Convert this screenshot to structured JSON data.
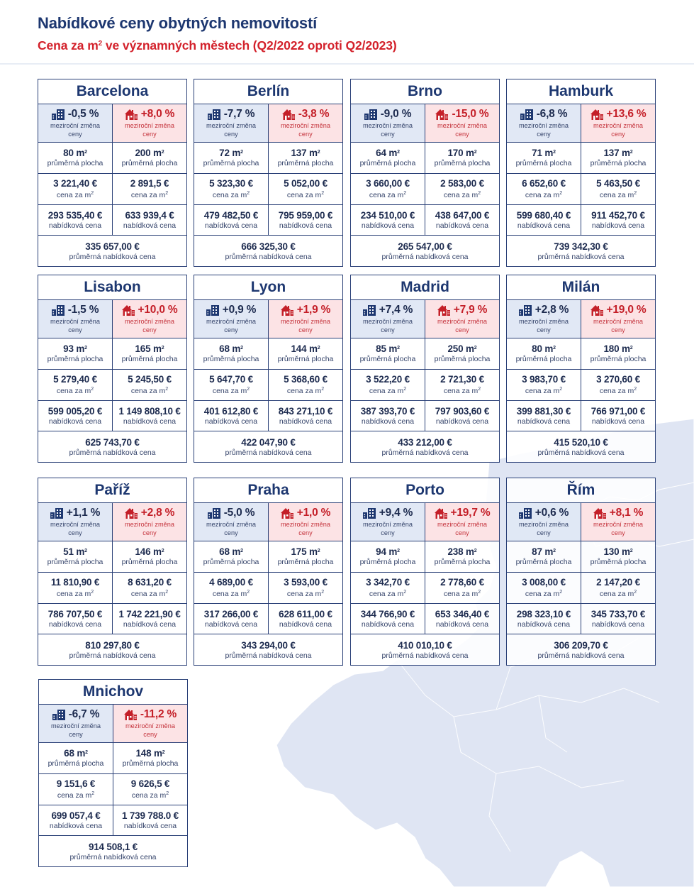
{
  "header": {
    "title": "Nabídkové ceny obytných nemovitostí",
    "subtitle_pre": "Cena za m",
    "subtitle_sup": "2",
    "subtitle_post": " ve významných městech (Q2/2022 oproti Q2/2023)"
  },
  "labels": {
    "change_line1": "meziroční změna",
    "change_line2": "ceny",
    "area": "průměrná plocha",
    "price_sqm": "cena za m",
    "sqm_sup": "2",
    "offer": "nabídková cena",
    "avg_offer": "průměrná nabídková cena"
  },
  "icons": {
    "flat": "apartment-building-icon",
    "house": "house-icon"
  },
  "colors": {
    "navy": "#1d3770",
    "red": "#d3212b",
    "flat_bg": "#dae2f2",
    "house_bg": "#fcdee0"
  },
  "cities": [
    {
      "name": "Barcelona",
      "flat_change": "-0,5 %",
      "house_change": "+8,0 %",
      "flat_area": "80 m",
      "house_area": "200 m",
      "flat_sqm": "3 221,40 €",
      "house_sqm": "2 891,5 €",
      "flat_offer": "293 535,40 €",
      "house_offer": "633 939,4 €",
      "avg_offer": "335 657,00 €"
    },
    {
      "name": "Berlín",
      "flat_change": "-7,7 %",
      "house_change": "-3,8 %",
      "flat_area": "72 m",
      "house_area": "137 m",
      "flat_sqm": "5 323,30 €",
      "house_sqm": "5 052,00 €",
      "flat_offer": "479 482,50 €",
      "house_offer": "795 959,00 €",
      "avg_offer": "666 325,30 €"
    },
    {
      "name": "Brno",
      "flat_change": "-9,0 %",
      "house_change": "-15,0 %",
      "flat_area": "64 m",
      "house_area": "170 m",
      "flat_sqm": "3 660,00 €",
      "house_sqm": "2 583,00 €",
      "flat_offer": "234 510,00 €",
      "house_offer": "438 647,00 €",
      "avg_offer": "265 547,00 €"
    },
    {
      "name": "Hamburk",
      "flat_change": "-6,8 %",
      "house_change": "+13,6 %",
      "flat_area": "71 m",
      "house_area": "137 m",
      "flat_sqm": "6 652,60 €",
      "house_sqm": "5 463,50 €",
      "flat_offer": "599 680,40 €",
      "house_offer": "911 452,70 €",
      "avg_offer": "739 342,30 €"
    },
    {
      "name": "Lisabon",
      "flat_change": "-1,5 %",
      "house_change": "+10,0 %",
      "flat_area": "93 m",
      "house_area": "165 m",
      "flat_sqm": "5 279,40 €",
      "house_sqm": "5 245,50 €",
      "flat_offer": "599 005,20 €",
      "house_offer": "1 149 808,10 €",
      "avg_offer": "625 743,70 €"
    },
    {
      "name": "Lyon",
      "flat_change": "+0,9 %",
      "house_change": "+1,9 %",
      "flat_area": "68 m",
      "house_area": "144 m",
      "flat_sqm": "5 647,70 €",
      "house_sqm": "5 368,60 €",
      "flat_offer": "401 612,80 €",
      "house_offer": "843 271,10 €",
      "avg_offer": "422 047,90 €"
    },
    {
      "name": "Madrid",
      "flat_change": "+7,4 %",
      "house_change": "+7,9 %",
      "flat_area": "85 m",
      "house_area": "250 m",
      "flat_sqm": "3 522,20 €",
      "house_sqm": "2 721,30 €",
      "flat_offer": "387 393,70 €",
      "house_offer": "797 903,60 €",
      "avg_offer": "433 212,00 €"
    },
    {
      "name": "Milán",
      "flat_change": "+2,8 %",
      "house_change": "+19,0 %",
      "flat_area": "80 m",
      "house_area": "180 m",
      "flat_sqm": "3 983,70 €",
      "house_sqm": "3 270,60 €",
      "flat_offer": "399 881,30 €",
      "house_offer": "766 971,00 €",
      "avg_offer": "415 520,10 €"
    },
    {
      "name": "Paříž",
      "flat_change": "+1,1 %",
      "house_change": "+2,8 %",
      "flat_area": "51 m",
      "house_area": "146 m",
      "flat_sqm": "11 810,90 €",
      "house_sqm": "8 631,20 €",
      "flat_offer": "786 707,50 €",
      "house_offer": "1 742 221,90 €",
      "avg_offer": "810 297,80 €"
    },
    {
      "name": "Praha",
      "flat_change": "-5,0 %",
      "house_change": "+1,0 %",
      "flat_area": "68 m",
      "house_area": "175 m",
      "flat_sqm": "4 689,00 €",
      "house_sqm": "3 593,00 €",
      "flat_offer": "317 266,00 €",
      "house_offer": "628 611,00 €",
      "avg_offer": "343 294,00 €"
    },
    {
      "name": "Porto",
      "flat_change": "+9,4 %",
      "house_change": "+19,7 %",
      "flat_area": "94 m",
      "house_area": "238 m",
      "flat_sqm": "3 342,70 €",
      "house_sqm": "2 778,60 €",
      "flat_offer": "344 766,90 €",
      "house_offer": "653 346,40 €",
      "avg_offer": "410 010,10 €"
    },
    {
      "name": "Řím",
      "flat_change": "+0,6 %",
      "house_change": "+8,1 %",
      "flat_area": "87 m",
      "house_area": "130 m",
      "flat_sqm": "3 008,00 €",
      "house_sqm": "2 147,20 €",
      "flat_offer": "298 323,10 €",
      "house_offer": "345 733,70 €",
      "avg_offer": "306 209,70 €"
    },
    {
      "name": "Mnichov",
      "flat_change": "-6,7 %",
      "house_change": "-11,2 %",
      "flat_area": "68 m",
      "house_area": "148 m",
      "flat_sqm": "9 151,6 €",
      "house_sqm": "9 626,5 €",
      "flat_offer": "699 057,4 €",
      "house_offer": "1 739 788.0 €",
      "avg_offer": "914 508,1 €"
    }
  ]
}
